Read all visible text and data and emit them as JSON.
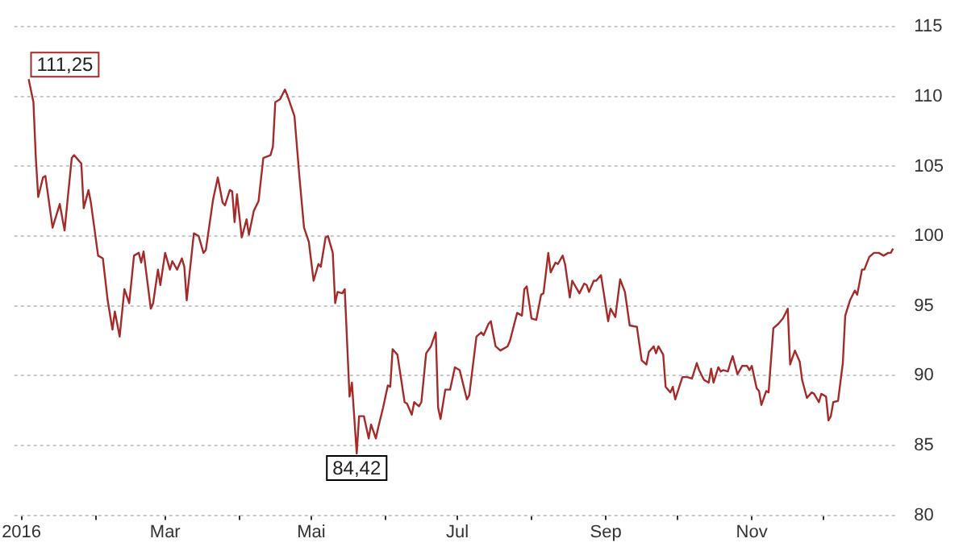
{
  "chart_data": {
    "type": "line",
    "xlim": [
      "2015-12-29",
      "2017-01-01"
    ],
    "ylim": [
      80,
      115
    ],
    "xticks": [
      {
        "value": "2016-01-01",
        "label": "2016"
      },
      {
        "value": "2016-02-01",
        "label": null
      },
      {
        "value": "2016-03-01",
        "label": "Mar"
      },
      {
        "value": "2016-04-01",
        "label": null
      },
      {
        "value": "2016-05-01",
        "label": "Mai"
      },
      {
        "value": "2016-06-01",
        "label": null
      },
      {
        "value": "2016-07-01",
        "label": "Jul"
      },
      {
        "value": "2016-08-01",
        "label": null
      },
      {
        "value": "2016-09-01",
        "label": "Sep"
      },
      {
        "value": "2016-10-01",
        "label": null
      },
      {
        "value": "2016-11-01",
        "label": "Nov"
      },
      {
        "value": "2016-12-01",
        "label": null
      }
    ],
    "yticks": [
      80,
      85,
      90,
      95,
      100,
      105,
      110,
      115
    ],
    "grid": "y",
    "legend": false,
    "marker": "none",
    "line_style": "solid",
    "annotations": [
      {
        "text": "111,25",
        "x": "2016-01-04",
        "y": 111.25
      },
      {
        "text": "84,42",
        "x": "2016-05-20",
        "y": 84.42
      }
    ],
    "series": [
      {
        "color": "#a52a2a",
        "x": [
          "2016-01-04",
          "2016-01-06",
          "2016-01-07",
          "2016-01-08",
          "2016-01-10",
          "2016-01-11",
          "2016-01-14",
          "2016-01-17",
          "2016-01-19",
          "2016-01-22",
          "2016-01-23",
          "2016-01-26",
          "2016-01-27",
          "2016-01-29",
          "2016-01-30",
          "2016-02-02",
          "2016-02-04",
          "2016-02-06",
          "2016-02-08",
          "2016-02-09",
          "2016-02-11",
          "2016-02-13",
          "2016-02-15",
          "2016-02-17",
          "2016-02-19",
          "2016-02-20",
          "2016-02-21",
          "2016-02-24",
          "2016-02-25",
          "2016-02-27",
          "2016-02-28",
          "2016-03-01",
          "2016-03-03",
          "2016-03-04",
          "2016-03-06",
          "2016-03-08",
          "2016-03-09",
          "2016-03-10",
          "2016-03-13",
          "2016-03-15",
          "2016-03-17",
          "2016-03-18",
          "2016-03-21",
          "2016-03-23",
          "2016-03-25",
          "2016-03-26",
          "2016-03-28",
          "2016-03-29",
          "2016-03-30",
          "2016-03-31",
          "2016-04-02",
          "2016-04-04",
          "2016-04-05",
          "2016-04-07",
          "2016-04-09",
          "2016-04-11",
          "2016-04-14",
          "2016-04-15",
          "2016-04-16",
          "2016-04-18",
          "2016-04-20",
          "2016-04-21",
          "2016-04-24",
          "2016-04-26",
          "2016-04-28",
          "2016-04-30",
          "2016-05-02",
          "2016-05-04",
          "2016-05-05",
          "2016-05-07",
          "2016-05-08",
          "2016-05-10",
          "2016-05-11",
          "2016-05-12",
          "2016-05-14",
          "2016-05-15",
          "2016-05-17",
          "2016-05-18",
          "2016-05-20",
          "2016-05-21",
          "2016-05-23",
          "2016-05-25",
          "2016-05-26",
          "2016-05-28",
          "2016-05-29",
          "2016-05-31",
          "2016-06-02",
          "2016-06-03",
          "2016-06-04",
          "2016-06-06",
          "2016-06-09",
          "2016-06-10",
          "2016-06-12",
          "2016-06-13",
          "2016-06-15",
          "2016-06-16",
          "2016-06-18",
          "2016-06-20",
          "2016-06-22",
          "2016-06-23",
          "2016-06-24",
          "2016-06-26",
          "2016-06-28",
          "2016-06-30",
          "2016-07-02",
          "2016-07-03",
          "2016-07-05",
          "2016-07-06",
          "2016-07-09",
          "2016-07-11",
          "2016-07-12",
          "2016-07-14",
          "2016-07-15",
          "2016-07-17",
          "2016-07-19",
          "2016-07-22",
          "2016-07-23",
          "2016-07-26",
          "2016-07-28",
          "2016-07-29",
          "2016-07-30",
          "2016-08-01",
          "2016-08-03",
          "2016-08-05",
          "2016-08-06",
          "2016-08-08",
          "2016-08-09",
          "2016-08-11",
          "2016-08-12",
          "2016-08-14",
          "2016-08-15",
          "2016-08-17",
          "2016-08-18",
          "2016-08-21",
          "2016-08-23",
          "2016-08-24",
          "2016-08-25",
          "2016-08-27",
          "2016-08-28",
          "2016-08-30",
          "2016-08-31",
          "2016-09-02",
          "2016-09-03",
          "2016-09-05",
          "2016-09-07",
          "2016-09-09",
          "2016-09-10",
          "2016-09-11",
          "2016-09-14",
          "2016-09-16",
          "2016-09-18",
          "2016-09-19",
          "2016-09-21",
          "2016-09-22",
          "2016-09-23",
          "2016-09-25",
          "2016-09-26",
          "2016-09-28",
          "2016-09-29",
          "2016-09-30",
          "2016-10-03",
          "2016-10-05",
          "2016-10-07",
          "2016-10-09",
          "2016-10-10",
          "2016-10-12",
          "2016-10-14",
          "2016-10-15",
          "2016-10-16",
          "2016-10-18",
          "2016-10-19",
          "2016-10-20",
          "2016-10-22",
          "2016-10-23",
          "2016-10-24",
          "2016-10-26",
          "2016-10-28",
          "2016-10-30",
          "2016-10-31",
          "2016-11-01",
          "2016-11-03",
          "2016-11-04",
          "2016-11-05",
          "2016-11-07",
          "2016-11-08",
          "2016-11-10",
          "2016-11-12",
          "2016-11-14",
          "2016-11-16",
          "2016-11-17",
          "2016-11-19",
          "2016-11-21",
          "2016-11-22",
          "2016-11-24",
          "2016-11-26",
          "2016-11-27",
          "2016-11-29",
          "2016-11-30",
          "2016-12-02",
          "2016-12-03",
          "2016-12-04",
          "2016-12-05",
          "2016-12-07",
          "2016-12-09",
          "2016-12-10",
          "2016-12-12",
          "2016-12-14",
          "2016-12-15",
          "2016-12-17",
          "2016-12-18",
          "2016-12-20",
          "2016-12-22",
          "2016-12-24",
          "2016-12-26",
          "2016-12-28",
          "2016-12-29",
          "2016-12-30"
        ],
        "values": [
          111.25,
          109.6,
          105.6,
          102.8,
          104.2,
          104.3,
          100.6,
          102.3,
          100.4,
          105.6,
          105.8,
          105.2,
          102.0,
          103.3,
          102.4,
          98.6,
          98.4,
          95.4,
          93.3,
          94.6,
          92.8,
          96.2,
          95.2,
          98.6,
          98.8,
          98.1,
          98.9,
          94.8,
          95.2,
          97.6,
          96.5,
          98.8,
          97.6,
          98.2,
          97.6,
          98.4,
          97.8,
          95.4,
          100.2,
          100.0,
          98.8,
          99.0,
          102.6,
          104.2,
          102.4,
          102.2,
          103.3,
          103.2,
          101.0,
          103.0,
          99.9,
          101.2,
          100.1,
          101.8,
          102.5,
          105.6,
          105.8,
          106.4,
          109.6,
          109.8,
          110.5,
          110.1,
          108.6,
          104.4,
          100.6,
          99.6,
          96.8,
          98.0,
          97.8,
          99.9,
          100.0,
          98.8,
          95.2,
          96.0,
          95.9,
          96.2,
          88.5,
          89.5,
          84.42,
          87.1,
          87.1,
          85.5,
          86.5,
          85.5,
          86.3,
          87.7,
          89.3,
          89.2,
          91.9,
          91.5,
          88.1,
          88.0,
          87.2,
          88.1,
          87.8,
          88.1,
          91.6,
          92.1,
          93.1,
          87.7,
          86.9,
          89.0,
          89.0,
          90.6,
          90.4,
          89.7,
          88.3,
          88.6,
          92.8,
          93.1,
          92.9,
          93.7,
          93.9,
          92.1,
          91.8,
          92.1,
          92.5,
          94.5,
          94.3,
          96.2,
          96.4,
          94.1,
          94.0,
          95.8,
          95.9,
          98.8,
          97.4,
          98.1,
          98.0,
          98.6,
          98.0,
          95.6,
          96.8,
          95.9,
          96.6,
          96.5,
          96.0,
          96.8,
          96.8,
          97.2,
          96.1,
          93.9,
          94.8,
          94.2,
          96.9,
          96.0,
          94.8,
          93.6,
          93.5,
          91.1,
          90.8,
          91.7,
          92.1,
          91.6,
          92.1,
          91.5,
          89.2,
          88.8,
          89.2,
          88.3,
          89.9,
          89.9,
          89.8,
          90.9,
          90.4,
          89.7,
          89.5,
          90.5,
          89.5,
          90.6,
          90.3,
          90.4,
          90.3,
          90.9,
          91.4,
          90.1,
          90.7,
          90.7,
          90.4,
          90.7,
          89.1,
          88.9,
          87.9,
          88.9,
          88.8,
          93.4,
          93.7,
          94.1,
          94.8,
          90.8,
          91.8,
          91.0,
          89.7,
          88.4,
          88.8,
          88.7,
          88.1,
          88.7,
          88.5,
          86.8,
          87.1,
          88.1,
          88.2,
          90.9,
          94.3,
          95.4,
          96.1,
          95.8,
          97.6,
          97.6,
          98.5,
          98.8,
          98.8,
          98.6,
          98.8,
          98.8,
          99.1
        ]
      }
    ]
  }
}
